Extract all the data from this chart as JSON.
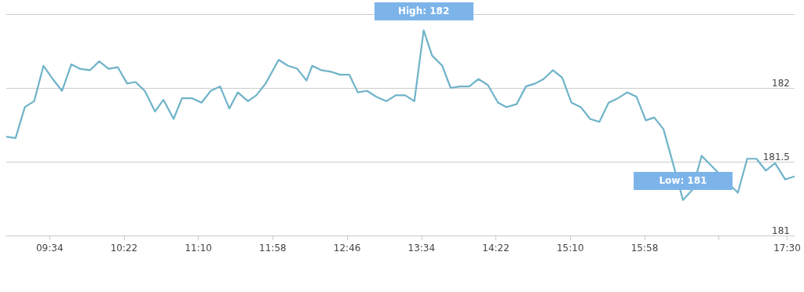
{
  "chart_data": {
    "type": "line",
    "x": [
      9.1,
      9.2,
      9.3,
      9.4,
      9.5,
      9.6,
      9.7,
      9.8,
      9.89,
      10.0,
      10.1,
      10.2,
      10.3,
      10.4,
      10.49,
      10.59,
      10.7,
      10.79,
      10.9,
      10.99,
      11.1,
      11.2,
      11.3,
      11.4,
      11.5,
      11.59,
      11.7,
      11.79,
      11.89,
      12.03,
      12.13,
      12.23,
      12.33,
      12.39,
      12.49,
      12.59,
      12.69,
      12.79,
      12.88,
      12.98,
      13.08,
      13.19,
      13.29,
      13.39,
      13.49,
      13.59,
      13.68,
      13.79,
      13.88,
      13.98,
      14.08,
      14.18,
      14.28,
      14.39,
      14.48,
      14.59,
      14.69,
      14.79,
      14.88,
      14.98,
      15.08,
      15.18,
      15.28,
      15.38,
      15.48,
      15.58,
      15.68,
      15.78,
      15.88,
      15.98,
      16.07,
      16.17,
      16.28,
      16.38,
      16.48,
      16.58,
      16.67,
      16.77,
      16.87,
      16.97,
      17.07,
      17.17,
      17.27,
      17.37,
      17.48,
      17.58
    ],
    "series": [
      {
        "color": "#6fb3c8",
        "values": [
          181.67,
          181.66,
          181.87,
          181.91,
          182.15,
          182.06,
          181.98,
          182.16,
          182.13,
          182.12,
          182.18,
          182.13,
          182.14,
          182.03,
          182.04,
          181.98,
          181.84,
          181.92,
          181.79,
          181.93,
          181.93,
          181.9,
          181.98,
          182.01,
          181.86,
          181.97,
          181.91,
          181.95,
          182.03,
          182.19,
          182.15,
          182.13,
          182.05,
          182.15,
          182.12,
          182.11,
          182.09,
          182.09,
          181.97,
          181.98,
          181.94,
          181.91,
          181.95,
          181.95,
          181.91,
          182.39,
          182.22,
          182.15,
          182.0,
          182.01,
          182.01,
          182.06,
          182.02,
          181.9,
          181.87,
          181.89,
          182.01,
          182.03,
          182.06,
          182.12,
          182.07,
          181.9,
          181.87,
          181.79,
          181.77,
          181.9,
          181.93,
          181.97,
          181.94,
          181.78,
          181.8,
          181.72,
          181.47,
          181.24,
          181.31,
          181.54,
          null,
          null,
          null,
          181.29,
          181.52,
          181.52,
          181.44,
          181.49,
          181.38,
          181.4
        ]
      }
    ],
    "xlim": [
      9.1,
      17.58
    ],
    "xticks": [
      {
        "value": 9.5667,
        "label": "09:34"
      },
      {
        "value": 10.3667,
        "label": "10:22"
      },
      {
        "value": 11.1667,
        "label": "11:10"
      },
      {
        "value": 11.9667,
        "label": "11:58"
      },
      {
        "value": 12.7667,
        "label": "12:46"
      },
      {
        "value": 13.5667,
        "label": "13:34"
      },
      {
        "value": 14.3667,
        "label": "14:22"
      },
      {
        "value": 15.1667,
        "label": "15:10"
      },
      {
        "value": 15.9667,
        "label": "15:58"
      },
      {
        "value": 16.7667,
        "label": null
      },
      {
        "value": 17.5,
        "label": "17:30"
      }
    ],
    "ylim": [
      181,
      182.5
    ],
    "yticks": [
      181,
      181.5,
      182,
      {
        "value": 182.5,
        "label": null
      }
    ],
    "grid": "y",
    "marker": "none",
    "line_style": "solid",
    "annotations": [
      {
        "text": "High: 182",
        "x": 13.59,
        "y": 182.39
      },
      {
        "text": "Low: 181",
        "x": 16.38,
        "y": 181.24
      }
    ]
  }
}
